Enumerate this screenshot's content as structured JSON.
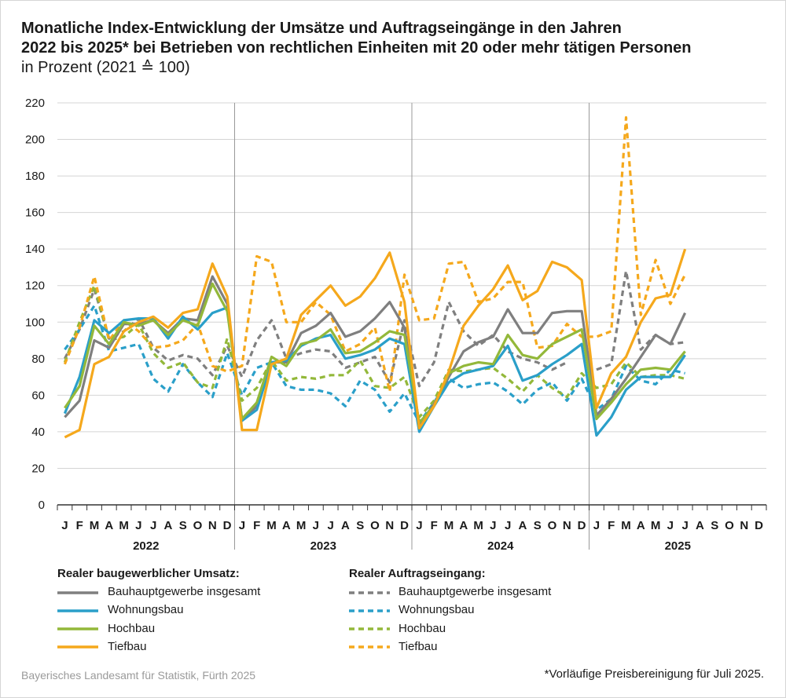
{
  "title": {
    "line1": "Monatliche Index-Entwicklung der Umsätze und Auftragseingänge in den Jahren",
    "line2": "2022 bis 2025* bei Betrieben von rechtlichen Einheiten mit 20 oder mehr tätigen Personen",
    "unit": "in Prozent (2021 ≙ 100)"
  },
  "source": "Bayerisches Landesamt für Statistik, Fürth 2025",
  "footnote": "*Vorläufige Preisbereinigung für Juli 2025.",
  "colors": {
    "bauhauptgewerbe": "#7f7f7f",
    "wohnungsbau": "#2a9fc9",
    "hochbau": "#93b83a",
    "tiefbau": "#f5a81c",
    "grid": "#d4d4d4",
    "axis": "#333333",
    "divider": "#999999"
  },
  "legend": {
    "umsatz_title": "Realer baugewerblicher Umsatz:",
    "auftrag_title": "Realer Auftragseingang:",
    "items": [
      "Bauhauptgewerbe insgesamt",
      "Wohnungsbau",
      "Hochbau",
      "Tiefbau"
    ]
  },
  "chart_data": {
    "type": "line",
    "years": [
      "2022",
      "2023",
      "2024",
      "2025"
    ],
    "month_labels": [
      "J",
      "F",
      "M",
      "A",
      "M",
      "J",
      "J",
      "A",
      "S",
      "O",
      "N",
      "D"
    ],
    "ylim": [
      0,
      220
    ],
    "yticks": [
      0,
      20,
      40,
      60,
      80,
      100,
      120,
      140,
      160,
      180,
      200,
      220
    ],
    "grid": "horizontal",
    "series": [
      {
        "name": "Bauhauptgewerbe insgesamt",
        "group": "umsatz",
        "color_key": "bauhauptgewerbe",
        "dashed": false,
        "values": [
          48,
          57,
          90,
          86,
          99,
          99,
          101,
          94,
          102,
          101,
          125,
          110,
          46,
          54,
          78,
          78,
          94,
          98,
          105,
          92,
          95,
          102,
          111,
          97,
          44,
          55,
          70,
          84,
          89,
          92,
          107,
          94,
          94,
          105,
          106,
          106,
          49,
          58,
          69,
          81,
          93,
          88,
          105
        ]
      },
      {
        "name": "Wohnungsbau",
        "group": "umsatz",
        "color_key": "wohnungsbau",
        "dashed": false,
        "values": [
          50,
          70,
          101,
          94,
          101,
          102,
          102,
          91,
          103,
          96,
          105,
          108,
          46,
          52,
          78,
          79,
          87,
          91,
          93,
          80,
          82,
          85,
          91,
          88,
          40,
          54,
          67,
          72,
          74,
          76,
          87,
          68,
          71,
          77,
          82,
          88,
          38,
          48,
          63,
          70,
          70,
          70,
          82
        ]
      },
      {
        "name": "Hochbau",
        "group": "umsatz",
        "color_key": "hochbau",
        "dashed": false,
        "values": [
          53,
          65,
          98,
          88,
          100,
          98,
          101,
          93,
          101,
          98,
          121,
          106,
          47,
          56,
          81,
          76,
          88,
          90,
          96,
          83,
          84,
          89,
          95,
          93,
          45,
          54,
          72,
          76,
          78,
          77,
          93,
          82,
          80,
          88,
          92,
          96,
          47,
          56,
          66,
          74,
          75,
          74,
          84
        ]
      },
      {
        "name": "Tiefbau",
        "group": "umsatz",
        "color_key": "tiefbau",
        "dashed": false,
        "values": [
          37,
          41,
          77,
          81,
          95,
          100,
          103,
          97,
          105,
          107,
          132,
          114,
          41,
          41,
          77,
          80,
          104,
          112,
          120,
          109,
          114,
          124,
          138,
          111,
          42,
          54,
          73,
          98,
          109,
          118,
          131,
          112,
          117,
          133,
          130,
          123,
          53,
          72,
          81,
          100,
          113,
          115,
          140
        ]
      },
      {
        "name": "Bauhauptgewerbe insgesamt",
        "group": "auftrag",
        "color_key": "bauhauptgewerbe",
        "dashed": true,
        "values": [
          80,
          96,
          118,
          91,
          95,
          102,
          86,
          79,
          82,
          80,
          71,
          87,
          70,
          90,
          101,
          80,
          83,
          85,
          84,
          75,
          78,
          81,
          67,
          101,
          65,
          78,
          111,
          95,
          87,
          93,
          84,
          80,
          78,
          74,
          78,
          null,
          74,
          77,
          128,
          85,
          93,
          88,
          89
        ]
      },
      {
        "name": "Wohnungsbau",
        "group": "auftrag",
        "color_key": "wohnungsbau",
        "dashed": true,
        "values": [
          85,
          96,
          109,
          84,
          86,
          88,
          69,
          62,
          77,
          67,
          59,
          83,
          60,
          75,
          78,
          65,
          63,
          63,
          61,
          54,
          68,
          63,
          51,
          61,
          45,
          56,
          69,
          64,
          66,
          67,
          62,
          55,
          63,
          67,
          57,
          69,
          52,
          58,
          76,
          68,
          66,
          74,
          72
        ]
      },
      {
        "name": "Hochbau",
        "group": "auftrag",
        "color_key": "hochbau",
        "dashed": true,
        "values": [
          78,
          100,
          120,
          90,
          92,
          99,
          83,
          75,
          78,
          67,
          64,
          91,
          57,
          64,
          79,
          68,
          70,
          69,
          71,
          71,
          79,
          65,
          64,
          70,
          48,
          57,
          74,
          73,
          74,
          75,
          69,
          62,
          71,
          64,
          59,
          72,
          64,
          66,
          78,
          70,
          71,
          71,
          69
        ]
      },
      {
        "name": "Tiefbau",
        "group": "auftrag",
        "color_key": "tiefbau",
        "dashed": true,
        "values": [
          77,
          97,
          125,
          90,
          101,
          95,
          86,
          87,
          90,
          99,
          76,
          73,
          76,
          136,
          133,
          100,
          100,
          111,
          104,
          84,
          88,
          97,
          62,
          126,
          101,
          102,
          132,
          133,
          111,
          113,
          122,
          122,
          86,
          87,
          99,
          92,
          92,
          95,
          212,
          104,
          134,
          110,
          126
        ]
      }
    ]
  }
}
